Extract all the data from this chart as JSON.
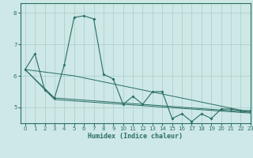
{
  "xlabel": "Humidex (Indice chaleur)",
  "xlim": [
    -0.5,
    23
  ],
  "ylim": [
    4.5,
    8.3
  ],
  "yticks": [
    5,
    6,
    7,
    8
  ],
  "xticks": [
    0,
    1,
    2,
    3,
    4,
    5,
    6,
    7,
    8,
    9,
    10,
    11,
    12,
    13,
    14,
    15,
    16,
    17,
    18,
    19,
    20,
    21,
    22,
    23
  ],
  "bg_color": "#cde8e6",
  "line_color": "#2a6e65",
  "grid_color": "#a8ccca",
  "series1_x": [
    0,
    1,
    2,
    3,
    4,
    5,
    6,
    7,
    8,
    9,
    10,
    11,
    12,
    13,
    14,
    15,
    16,
    17,
    18,
    19,
    20,
    21,
    22,
    23
  ],
  "series1_y": [
    6.2,
    6.7,
    5.55,
    5.3,
    6.35,
    7.85,
    7.9,
    7.8,
    6.05,
    5.9,
    5.1,
    5.35,
    5.1,
    5.5,
    5.5,
    4.65,
    4.8,
    4.55,
    4.8,
    4.65,
    4.95,
    4.95,
    4.9,
    4.9
  ],
  "series2_x": [
    0,
    5,
    23
  ],
  "series2_y": [
    6.2,
    6.0,
    4.85
  ],
  "series3_x": [
    0,
    3,
    23
  ],
  "series3_y": [
    6.2,
    5.3,
    4.85
  ],
  "series4_x": [
    0,
    3,
    23
  ],
  "series4_y": [
    6.2,
    5.25,
    4.82
  ]
}
